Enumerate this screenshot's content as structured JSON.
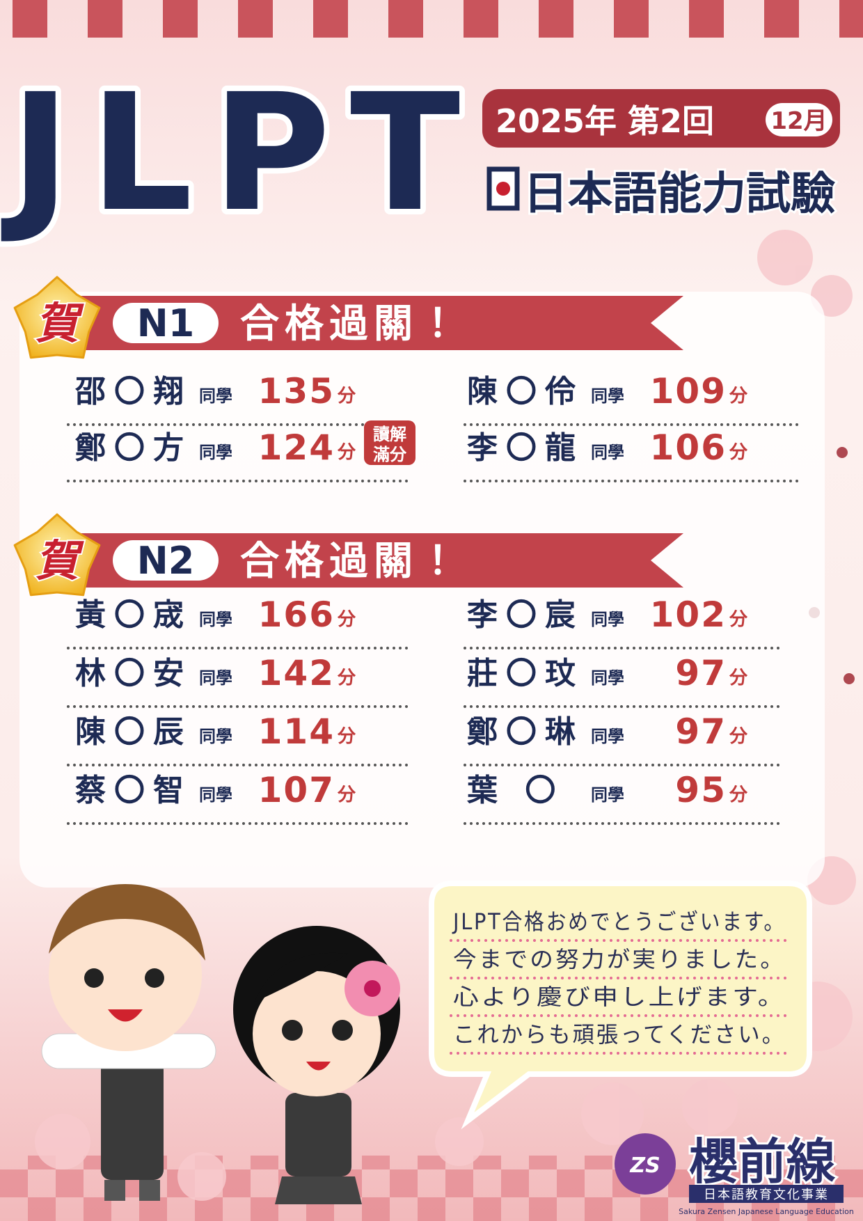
{
  "header": {
    "title": "JLPT",
    "edition": "2025年 第2回",
    "month": "12月",
    "subtitle": "日本語能力試驗"
  },
  "sections": [
    {
      "badge": "賀",
      "level": "N1",
      "heading": "合格過關！",
      "entries": [
        {
          "name": "邵〇翔",
          "suffix": "同學",
          "score": 135,
          "unit": "分"
        },
        {
          "name": "陳〇伶",
          "suffix": "同學",
          "score": 109,
          "unit": "分"
        },
        {
          "name": "鄭〇方",
          "suffix": "同學",
          "score": 124,
          "unit": "分",
          "note": [
            "讀解",
            "滿分"
          ]
        },
        {
          "name": "李〇龍",
          "suffix": "同學",
          "score": 106,
          "unit": "分"
        }
      ]
    },
    {
      "badge": "賀",
      "level": "N2",
      "heading": "合格過關！",
      "entries": [
        {
          "name": "黃〇宬",
          "suffix": "同學",
          "score": 166,
          "unit": "分"
        },
        {
          "name": "李〇宸",
          "suffix": "同學",
          "score": 102,
          "unit": "分"
        },
        {
          "name": "林〇安",
          "suffix": "同學",
          "score": 142,
          "unit": "分"
        },
        {
          "name": "莊〇玟",
          "suffix": "同學",
          "score": 97,
          "unit": "分"
        },
        {
          "name": "陳〇辰",
          "suffix": "同學",
          "score": 114,
          "unit": "分"
        },
        {
          "name": "鄭〇琳",
          "suffix": "同學",
          "score": 97,
          "unit": "分"
        },
        {
          "name": "蔡〇智",
          "suffix": "同學",
          "score": 107,
          "unit": "分"
        },
        {
          "name": "葉 〇",
          "suffix": "同學",
          "score": 95,
          "unit": "分"
        }
      ]
    }
  ],
  "message": [
    "JLPT合格おめでとうございます。",
    "今までの努力が実りました。",
    "心より慶び申し上げます。",
    "これからも頑張ってください。"
  ],
  "logo": {
    "mark": "ZS",
    "name": "櫻前線",
    "tagline": "日本語教育文化事業",
    "english": "Sakura Zensen Japanese Language Education"
  }
}
